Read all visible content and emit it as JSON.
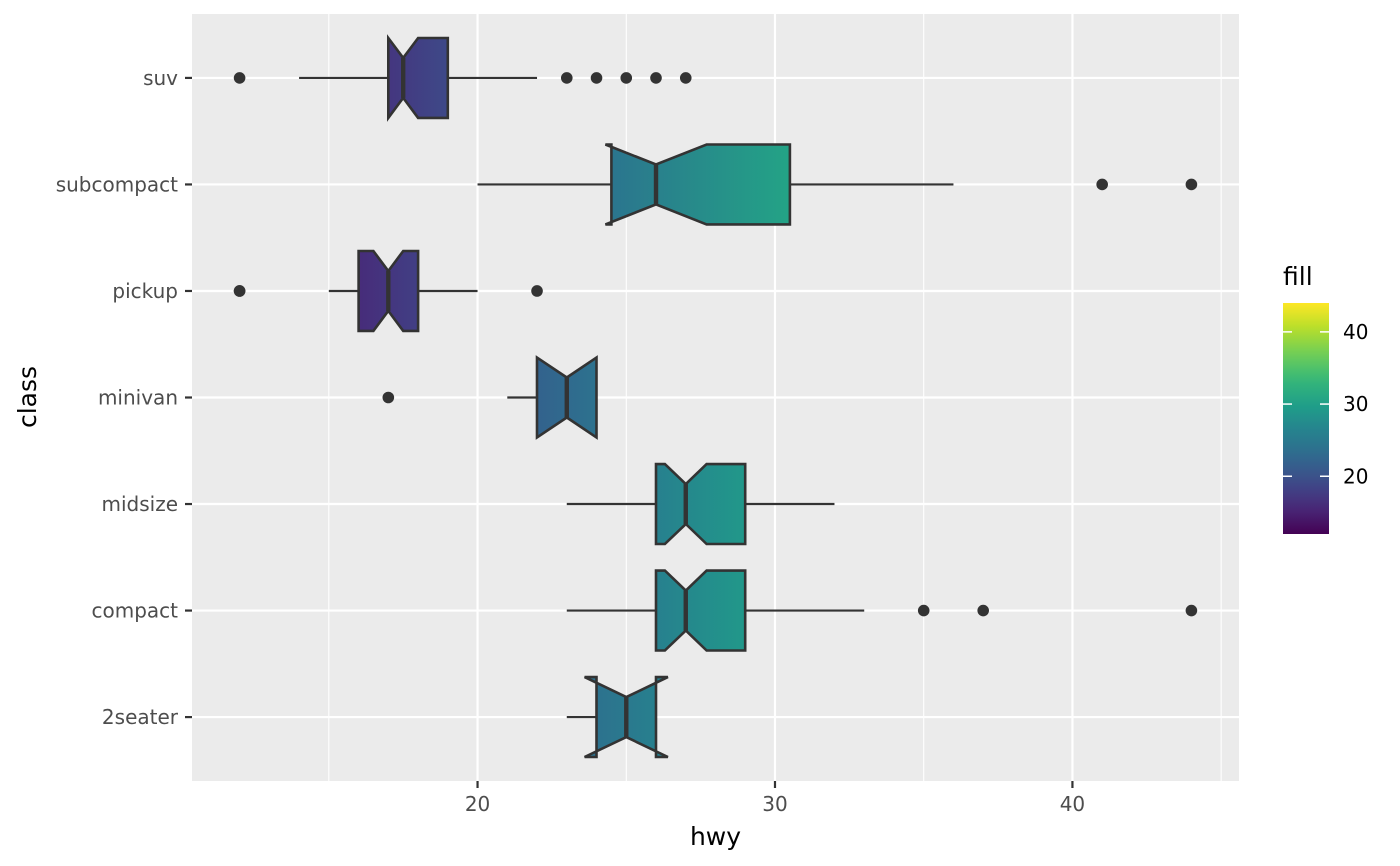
{
  "chart_data": {
    "type": "boxplot",
    "orientation": "horizontal",
    "notch": true,
    "xlabel": "hwy",
    "ylabel": "class",
    "xlim": [
      10.4,
      45.6
    ],
    "x_ticks": [
      20,
      30,
      40
    ],
    "x_tick_labels": [
      "20",
      "30",
      "40"
    ],
    "x_minor_ticks": [
      15,
      25,
      35,
      45
    ],
    "grid": true,
    "categories": [
      "2seater",
      "compact",
      "midsize",
      "minivan",
      "pickup",
      "subcompact",
      "suv"
    ],
    "boxes": [
      {
        "category": "2seater",
        "whisker_low": 23,
        "q1": 24,
        "median": 25,
        "q3": 26,
        "whisker_high": 26,
        "notch_low": 23.6,
        "notch_high": 26.4,
        "fill_value": 24.8,
        "outliers": []
      },
      {
        "category": "compact",
        "whisker_low": 23,
        "q1": 26,
        "median": 27,
        "q3": 29,
        "whisker_high": 33,
        "notch_low": 26.3,
        "notch_high": 27.7,
        "fill_value": 28.3,
        "outliers": [
          35,
          37,
          44
        ]
      },
      {
        "category": "midsize",
        "whisker_low": 23,
        "q1": 26,
        "median": 27,
        "q3": 29,
        "whisker_high": 32,
        "notch_low": 26.3,
        "notch_high": 27.7,
        "fill_value": 27.3,
        "outliers": []
      },
      {
        "category": "minivan",
        "whisker_low": 21,
        "q1": 22,
        "median": 23,
        "q3": 24,
        "whisker_high": 24,
        "notch_low": 22.0,
        "notch_high": 24.0,
        "fill_value": 22.4,
        "outliers": [
          17
        ]
      },
      {
        "category": "pickup",
        "whisker_low": 15,
        "q1": 16,
        "median": 17,
        "q3": 18,
        "whisker_high": 20,
        "notch_low": 16.5,
        "notch_high": 17.5,
        "fill_value": 16.9,
        "outliers": [
          12,
          12,
          22
        ]
      },
      {
        "category": "subcompact",
        "whisker_low": 20,
        "q1": 24.5,
        "median": 26,
        "q3": 30.5,
        "whisker_high": 36,
        "notch_low": 24.3,
        "notch_high": 27.7,
        "fill_value": 28.1,
        "outliers": [
          41,
          44
        ]
      },
      {
        "category": "suv",
        "whisker_low": 14,
        "q1": 17,
        "median": 17.5,
        "q3": 19,
        "whisker_high": 22,
        "notch_low": 17.0,
        "notch_high": 18.0,
        "fill_value": 18.1,
        "outliers": [
          12,
          23,
          24,
          25,
          26,
          27
        ]
      }
    ],
    "legend": {
      "title": "fill",
      "placement": "right",
      "colorscale": "viridis",
      "range": [
        12,
        44
      ],
      "ticks": [
        20,
        30,
        40
      ],
      "tick_labels": [
        "20",
        "30",
        "40"
      ]
    },
    "colors": {
      "panel_background": "#ebebeb",
      "grid": "#ffffff",
      "box_outline": "#333333",
      "outlier": "#333333"
    }
  }
}
